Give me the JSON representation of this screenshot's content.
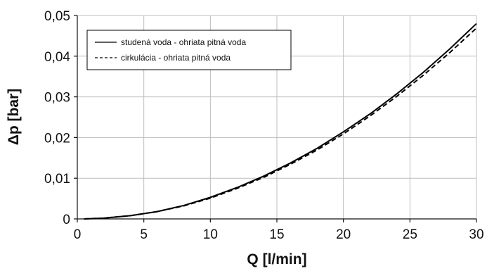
{
  "chart_data": {
    "type": "line",
    "xlabel": "Q [l/min]",
    "ylabel": "Δp [bar]",
    "xlim": [
      0,
      30
    ],
    "ylim": [
      0,
      0.05
    ],
    "x_ticks": [
      {
        "value": 0,
        "label": "0"
      },
      {
        "value": 5,
        "label": "5"
      },
      {
        "value": 10,
        "label": "10"
      },
      {
        "value": 15,
        "label": "15"
      },
      {
        "value": 20,
        "label": "20"
      },
      {
        "value": 25,
        "label": "25"
      },
      {
        "value": 30,
        "label": "30"
      }
    ],
    "y_ticks": [
      {
        "value": 0,
        "label": "0"
      },
      {
        "value": 0.01,
        "label": "0,01"
      },
      {
        "value": 0.02,
        "label": "0,02"
      },
      {
        "value": 0.03,
        "label": "0,03"
      },
      {
        "value": 0.04,
        "label": "0,04"
      },
      {
        "value": 0.05,
        "label": "0,05"
      }
    ],
    "grid": true,
    "legend_position": "top-left",
    "series": [
      {
        "name": "studená voda - ohriata pitná voda",
        "style": "solid",
        "color": "#000000",
        "x": [
          0.5,
          2,
          4,
          6,
          8,
          10,
          12,
          14,
          16,
          18,
          20,
          22,
          24,
          26,
          28,
          30
        ],
        "y": [
          0.0,
          0.0002,
          0.0008,
          0.0018,
          0.0033,
          0.0053,
          0.0077,
          0.0105,
          0.0137,
          0.0173,
          0.0214,
          0.0258,
          0.0307,
          0.036,
          0.0418,
          0.048
        ]
      },
      {
        "name": "cirkulácia - ohriata pitná voda",
        "style": "dashed",
        "color": "#000000",
        "x": [
          0.5,
          2,
          4,
          6,
          8,
          10,
          12,
          14,
          16,
          18,
          20,
          22,
          24,
          26,
          28,
          30
        ],
        "y": [
          0.0,
          0.0002,
          0.0008,
          0.0018,
          0.0032,
          0.0051,
          0.0075,
          0.0102,
          0.0134,
          0.0169,
          0.0209,
          0.0253,
          0.0301,
          0.0353,
          0.0409,
          0.0469
        ]
      }
    ]
  }
}
